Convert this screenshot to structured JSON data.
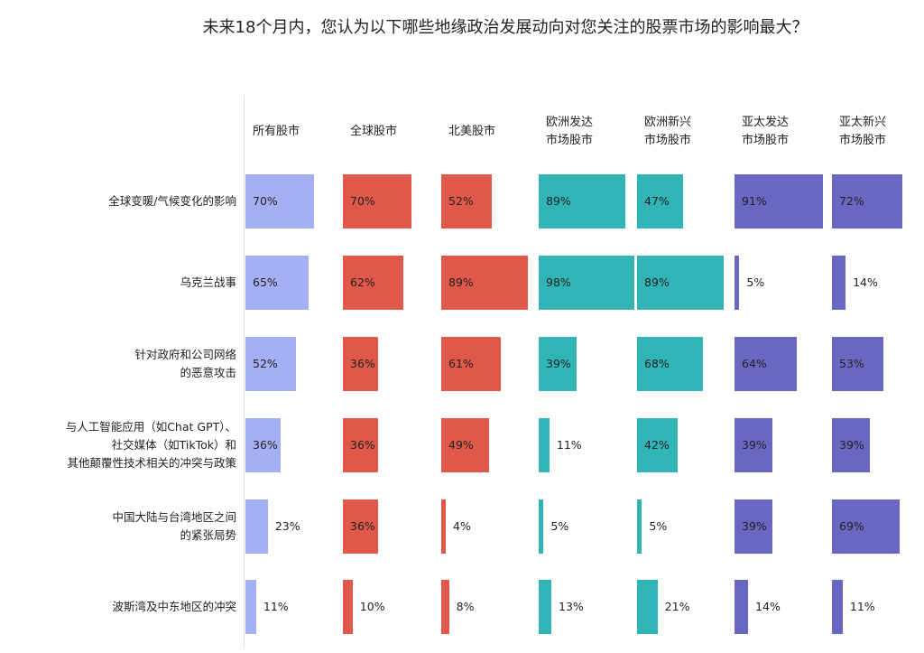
{
  "chart_data": {
    "type": "bar",
    "title": "未来18个月内，您认为以下哪些地缘政治发展动向对您关注的股票市场的影响最大？",
    "columns": [
      "所有股市",
      "全球股市",
      "北美股市",
      "欧洲发达\n市场股市",
      "欧洲新兴\n市场股市",
      "亚太发达\n市场股市",
      "亚太新兴\n市场股市"
    ],
    "column_colors": [
      "#a5aff4",
      "#e0584a",
      "#e0584a",
      "#31b4b6",
      "#31b4b6",
      "#6a67c2",
      "#6a67c2"
    ],
    "categories": [
      "全球变暖/气候变化的影响",
      "乌克兰战事",
      "针对政府和公司网络\n的恶意攻击",
      "与人工智能应用（如Chat GPT）、\n社交媒体（如TikTok）和\n其他颠覆性技术相关的冲突与政策",
      "中国大陆与台湾地区之间\n的紧张局势",
      "波斯湾及中东地区的冲突"
    ],
    "values": [
      [
        70,
        70,
        52,
        89,
        47,
        91,
        72
      ],
      [
        65,
        62,
        89,
        98,
        89,
        5,
        14
      ],
      [
        52,
        36,
        61,
        39,
        68,
        64,
        53
      ],
      [
        36,
        36,
        49,
        11,
        42,
        39,
        39
      ],
      [
        23,
        36,
        4,
        5,
        5,
        39,
        69
      ],
      [
        11,
        10,
        8,
        13,
        21,
        14,
        11
      ]
    ],
    "unit": "%",
    "xlim": [
      0,
      100
    ]
  }
}
